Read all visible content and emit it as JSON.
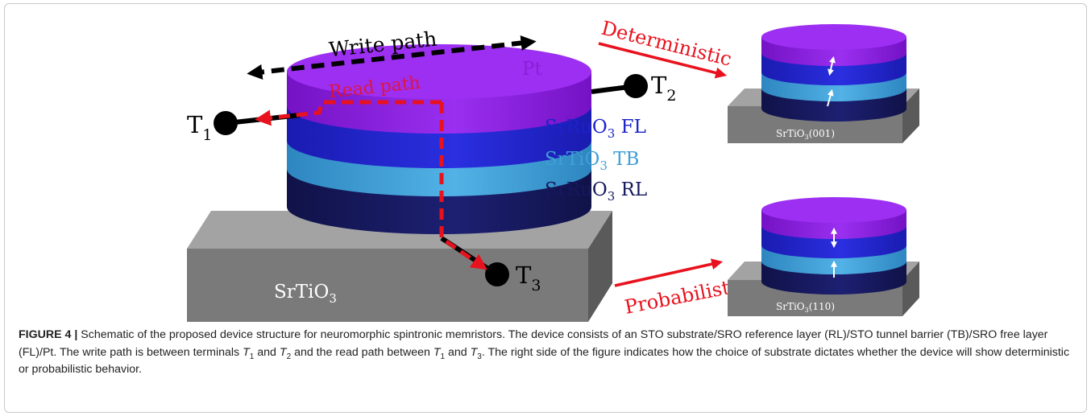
{
  "figure": {
    "write_path": "Write path",
    "read_path": "Read path",
    "pt": "Pt",
    "fl": {
      "main": "SrRuO",
      "sub": "3",
      "suffix": " FL"
    },
    "tb": {
      "main": "SrTiO",
      "sub": "3",
      "suffix": " TB"
    },
    "rl": {
      "main": "SrRuO",
      "sub": "3",
      "suffix": " RL"
    },
    "substrate": {
      "main": "SrTiO",
      "sub": "3"
    },
    "t1": {
      "main": "T",
      "sub": "1"
    },
    "t2": {
      "main": "T",
      "sub": "2"
    },
    "t3": {
      "main": "T",
      "sub": "3"
    },
    "deterministic": "Deterministic",
    "probabilistic": "Probabilistic",
    "sub001": {
      "main": "SrTiO",
      "sub": "3",
      "suffix": "(001)"
    },
    "sub110": {
      "main": "SrTiO",
      "sub": "3",
      "suffix": "(110)"
    }
  },
  "caption": {
    "label": "FIGURE 4 |",
    "p1": " Schematic of the proposed device structure for neuromorphic spintronic memristors. The device consists of an STO substrate/SRO reference layer (RL)/STO tunnel barrier (TB)/SRO free layer (FL)/Pt. The write path is between terminals ",
    "t1": "T",
    "t1s": "1",
    "p2": " and ",
    "t2": "T",
    "t2s": "2",
    "p3": " and the read path between ",
    "t3": "T",
    "t3s": "1",
    "p4": " and ",
    "t4": "T",
    "t4s": "3",
    "p5": ". The right side of the figure indicates how the choice of substrate dictates whether the device will show deterministic or probabilistic behavior."
  },
  "colors": {
    "pt": "#8a1fd6",
    "fl": "#1d22c8",
    "tb": "#3f9fd6",
    "rl": "#16185e",
    "substrate": "#7f7f7f",
    "arrow_red": "#e8121e",
    "terminal": "#000000"
  }
}
